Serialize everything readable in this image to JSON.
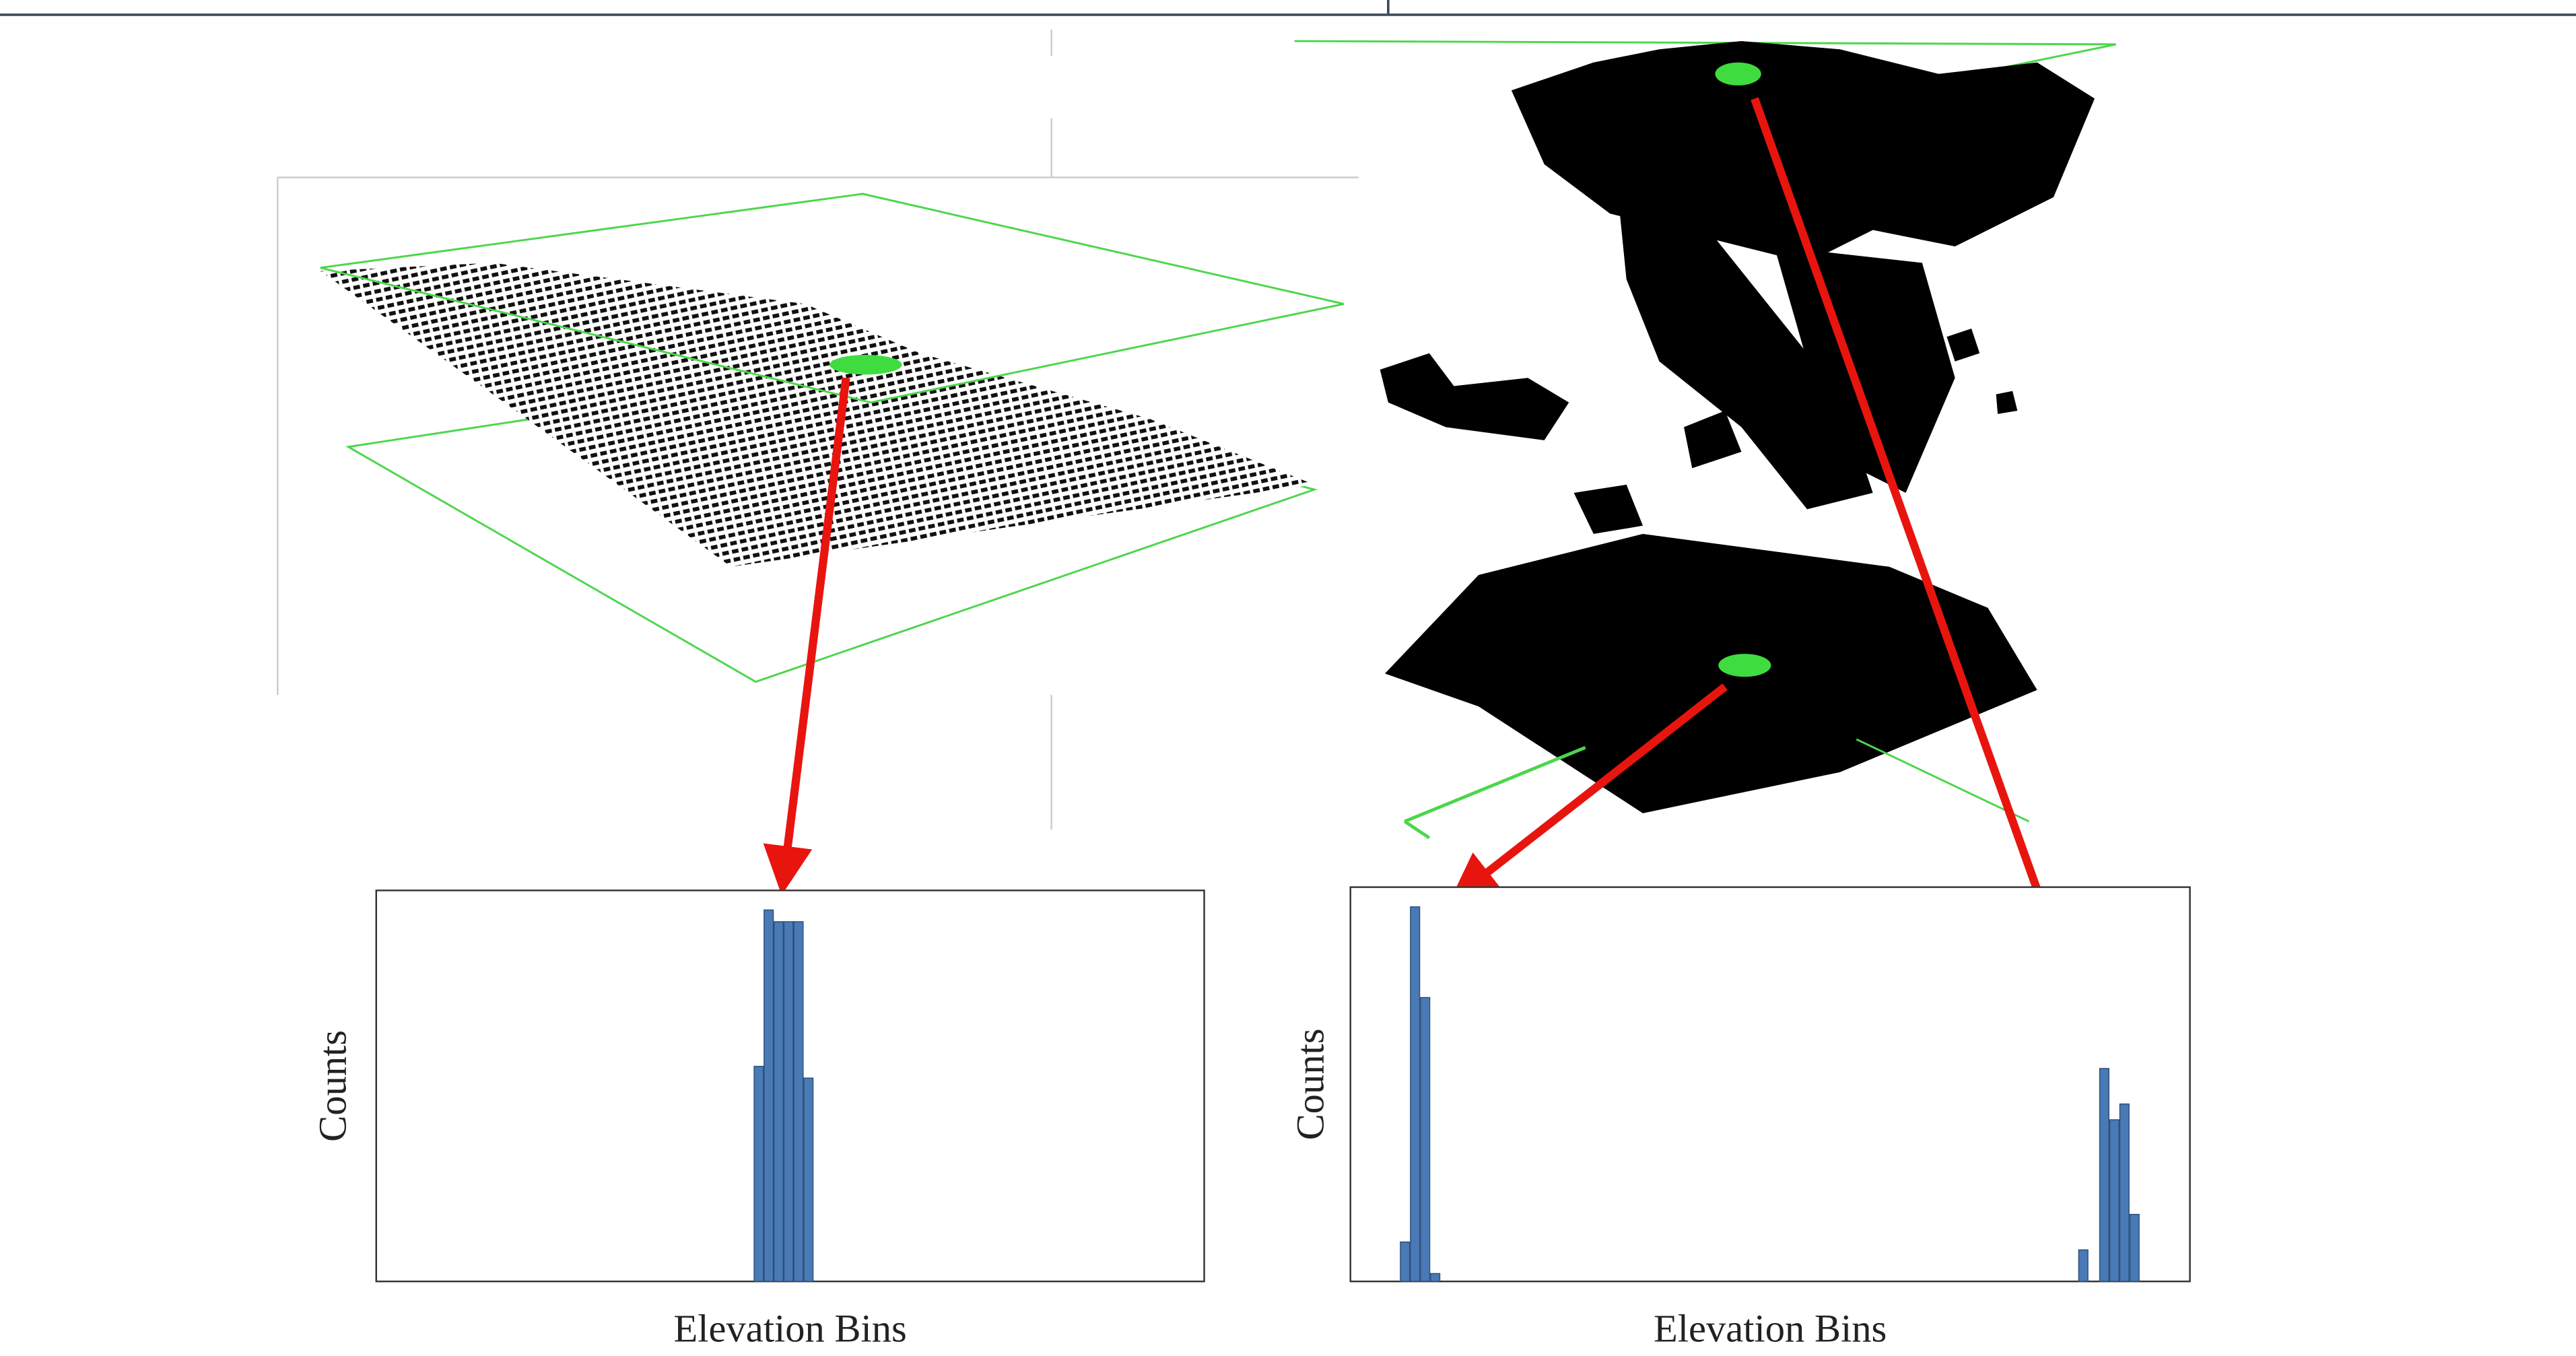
{
  "chart_data": [
    {
      "type": "bar",
      "y_label": "Counts",
      "x_label": "Elevation Bins",
      "x": [
        46.2,
        47.4,
        48.6,
        49.8,
        51.0,
        52.2
      ],
      "values": [
        55,
        95,
        92,
        92,
        92,
        52
      ],
      "xlim": [
        0,
        100
      ],
      "ylim": [
        0,
        100
      ],
      "color": "#4a7ab5"
    },
    {
      "type": "bar",
      "y_label": "Counts",
      "x_label": "Elevation Bins",
      "x": [
        6.5,
        7.7,
        8.9,
        10.1,
        87.3,
        89.8,
        91.0,
        92.2,
        93.4
      ],
      "values": [
        10,
        95,
        72,
        2,
        8,
        54,
        41,
        45,
        17
      ],
      "xlim": [
        0,
        100
      ],
      "ylim": [
        0,
        100
      ],
      "color": "#4a7ab5"
    }
  ]
}
